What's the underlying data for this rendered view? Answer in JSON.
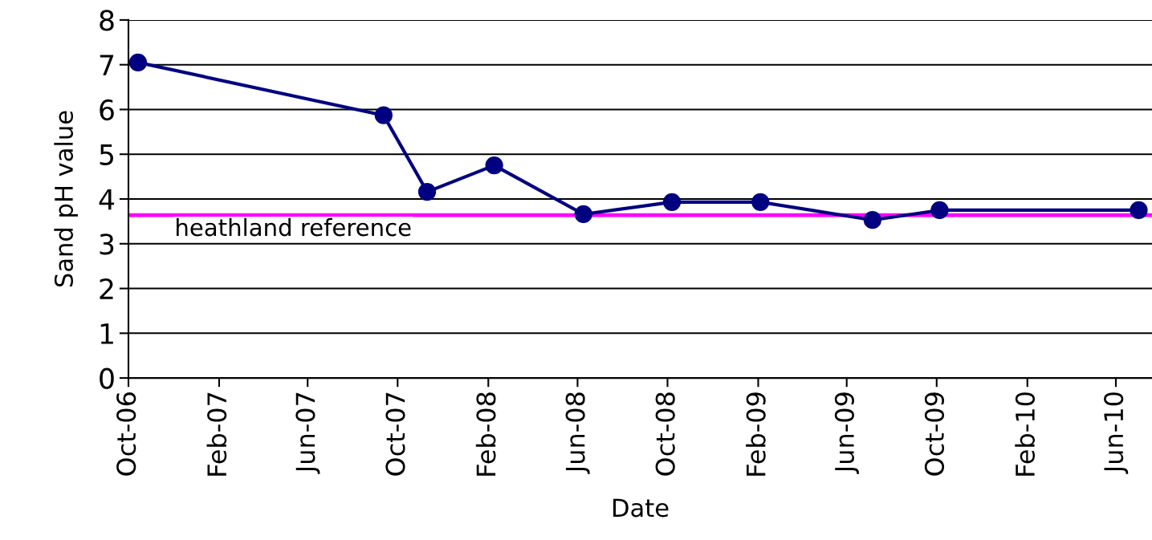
{
  "chart_data": {
    "type": "line",
    "xlabel": "Date",
    "ylabel": "Sand pH value",
    "x": [
      "2006-10-14",
      "2007-09-12",
      "2007-11-10",
      "2008-02-09",
      "2008-06-09",
      "2008-10-07",
      "2009-02-04",
      "2009-07-06",
      "2009-10-05",
      "2010-07-02"
    ],
    "series": [
      {
        "color": "#000080",
        "values": [
          7.05,
          5.87,
          4.16,
          4.75,
          3.66,
          3.93,
          3.93,
          3.53,
          3.75,
          3.75
        ]
      }
    ],
    "marker": "circle",
    "line_style": "solid",
    "ref_lines": [
      {
        "axis": "y",
        "value": 3.64,
        "label": "heathland reference",
        "color": "#ff00ff",
        "line_style": "solid"
      }
    ],
    "xlim": [
      "2006-10-01",
      "2010-07-20"
    ],
    "xticks": [
      {
        "value": "2006-10-01",
        "label": "Oct-06"
      },
      {
        "value": "2007-02-01",
        "label": "Feb-07"
      },
      {
        "value": "2007-06-01",
        "label": "Jun-07"
      },
      {
        "value": "2007-10-01",
        "label": "Oct-07"
      },
      {
        "value": "2008-02-01",
        "label": "Feb-08"
      },
      {
        "value": "2008-06-01",
        "label": "Jun-08"
      },
      {
        "value": "2008-10-01",
        "label": "Oct-08"
      },
      {
        "value": "2009-02-01",
        "label": "Feb-09"
      },
      {
        "value": "2009-06-01",
        "label": "Jun-09"
      },
      {
        "value": "2009-10-01",
        "label": "Oct-09"
      },
      {
        "value": "2010-02-01",
        "label": "Feb-10"
      },
      {
        "value": "2010-06-01",
        "label": "Jun-10"
      }
    ],
    "ylim": [
      0,
      8
    ],
    "yticks": [
      0,
      1,
      2,
      3,
      4,
      5,
      6,
      7,
      8
    ],
    "grid": "y",
    "legend": false
  }
}
